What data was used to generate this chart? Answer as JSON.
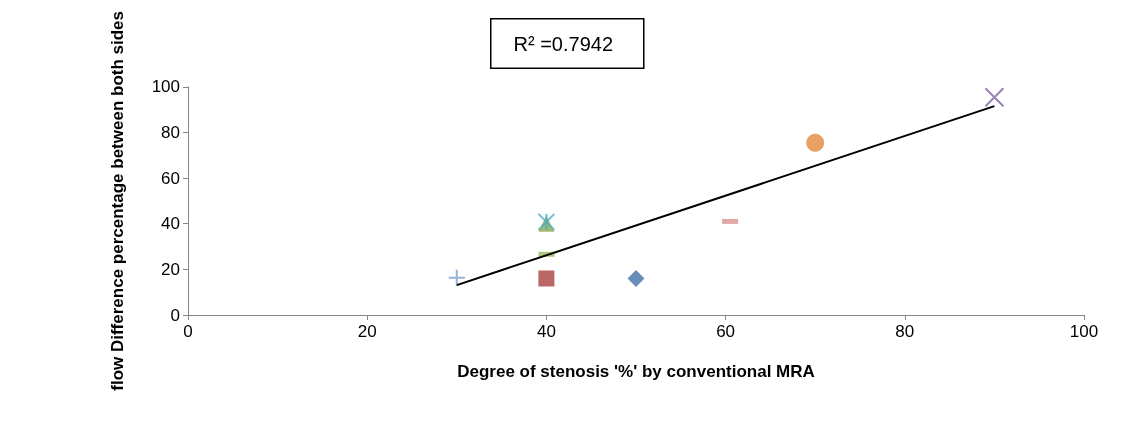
{
  "chart_data": {
    "type": "scatter",
    "xlabel": "Degree of stenosis '%' by conventional MRA",
    "ylabel": "flow Difference percentage between both sides",
    "xlim": [
      0,
      100
    ],
    "xticks": [
      0,
      20,
      40,
      60,
      80,
      100
    ],
    "ylim": [
      0,
      100
    ],
    "yticks": [
      0,
      20,
      40,
      60,
      80,
      100
    ],
    "grid": false,
    "annotations": [
      "R² =0.7942"
    ],
    "series": [
      {
        "color": "#7f9fd1",
        "marker": "plus",
        "x": [
          30
        ],
        "values": [
          16.3
        ]
      },
      {
        "color": "#a8423f",
        "marker": "square",
        "x": [
          40
        ],
        "values": [
          16
        ]
      },
      {
        "color": "#9bbb59",
        "x": [
          40
        ],
        "values": [
          26.6
        ]
      },
      {
        "color": "#8aa84a",
        "marker": "triangle",
        "x": [
          40
        ],
        "values": [
          40
        ]
      },
      {
        "color": "#4aacc5",
        "marker": "cross",
        "x": [
          40
        ],
        "values": [
          40.8
        ]
      },
      {
        "color": "#4470a8",
        "marker": "diamond",
        "x": [
          50
        ],
        "values": [
          16
        ]
      },
      {
        "color": "#d99594",
        "x": [
          60.5
        ],
        "values": [
          41
        ]
      },
      {
        "color": "#e08a3c",
        "marker": "circle",
        "x": [
          70
        ],
        "values": [
          75.5
        ]
      },
      {
        "color": "#8064a2",
        "marker": "x",
        "x": [
          90
        ],
        "values": [
          95.4
        ]
      },
      {
        "type": "line",
        "color": "#000000",
        "marker": "none",
        "x": [
          30,
          90
        ],
        "values": [
          13.1,
          91.5
        ]
      }
    ]
  }
}
